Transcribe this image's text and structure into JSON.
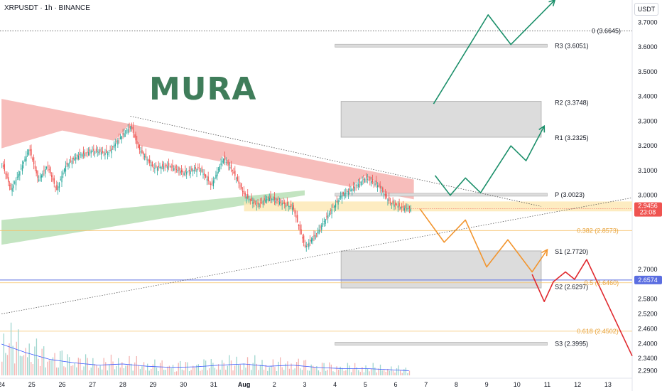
{
  "header": {
    "symbol": "XRPUSDT · 1h · BINANCE",
    "currency": "USDT"
  },
  "watermark": "MURA",
  "colors": {
    "up": "#26a69a",
    "down": "#ef5350",
    "volume_up": "#9fd6cf",
    "volume_down": "#f4b4b2",
    "green_path": "#1b8f6a",
    "orange_path": "#f2952e",
    "red_path": "#e0292e",
    "pivot_zone": "#dcdcdc",
    "fib_line": "#f5c26b",
    "price_zone": "#fde9b6",
    "current_price": "#ef5350",
    "blue_line": "#5b6ee1"
  },
  "chart_data": {
    "type": "candlestick",
    "y_axis": {
      "ylim": [
        2.26,
        3.79
      ],
      "ticks": [
        "3.7000",
        "3.6000",
        "3.5000",
        "3.4000",
        "3.3000",
        "3.2000",
        "3.1000",
        "3.0000",
        "2.7000",
        "2.5800",
        "2.5200",
        "2.4600",
        "2.4000",
        "2.3400",
        "2.2900"
      ]
    },
    "x_axis": {
      "ticks": [
        {
          "t": 0,
          "label": "24"
        },
        {
          "t": 1,
          "label": "25"
        },
        {
          "t": 2,
          "label": "26"
        },
        {
          "t": 3,
          "label": "27"
        },
        {
          "t": 4,
          "label": "28"
        },
        {
          "t": 5,
          "label": "29"
        },
        {
          "t": 6,
          "label": "30"
        },
        {
          "t": 7,
          "label": "31"
        },
        {
          "t": 8,
          "label": "Aug"
        },
        {
          "t": 9,
          "label": "2"
        },
        {
          "t": 10,
          "label": "3"
        },
        {
          "t": 11,
          "label": "4"
        },
        {
          "t": 12,
          "label": "5"
        },
        {
          "t": 13,
          "label": "6"
        },
        {
          "t": 14,
          "label": "7"
        },
        {
          "t": 15,
          "label": "8"
        },
        {
          "t": 16,
          "label": "9"
        },
        {
          "t": 17,
          "label": "10"
        },
        {
          "t": 18,
          "label": "11"
        },
        {
          "t": 19,
          "label": "12"
        },
        {
          "t": 20,
          "label": "13"
        }
      ],
      "xlim": [
        -0.05,
        20.8
      ]
    },
    "price_path": [
      {
        "t": 0.0,
        "p": 3.13
      },
      {
        "t": 0.3,
        "p": 3.02
      },
      {
        "t": 0.6,
        "p": 3.1
      },
      {
        "t": 0.9,
        "p": 3.19
      },
      {
        "t": 1.2,
        "p": 3.06
      },
      {
        "t": 1.5,
        "p": 3.12
      },
      {
        "t": 1.8,
        "p": 3.02
      },
      {
        "t": 2.1,
        "p": 3.12
      },
      {
        "t": 2.5,
        "p": 3.16
      },
      {
        "t": 3.0,
        "p": 3.18
      },
      {
        "t": 3.5,
        "p": 3.17
      },
      {
        "t": 3.8,
        "p": 3.22
      },
      {
        "t": 4.25,
        "p": 3.28
      },
      {
        "t": 4.5,
        "p": 3.19
      },
      {
        "t": 5.0,
        "p": 3.11
      },
      {
        "t": 5.5,
        "p": 3.12
      },
      {
        "t": 6.0,
        "p": 3.09
      },
      {
        "t": 6.5,
        "p": 3.11
      },
      {
        "t": 6.9,
        "p": 3.04
      },
      {
        "t": 7.3,
        "p": 3.15
      },
      {
        "t": 7.6,
        "p": 3.1
      },
      {
        "t": 8.0,
        "p": 3.0
      },
      {
        "t": 8.4,
        "p": 2.96
      },
      {
        "t": 8.8,
        "p": 2.99
      },
      {
        "t": 9.2,
        "p": 2.97
      },
      {
        "t": 9.6,
        "p": 2.95
      },
      {
        "t": 10.0,
        "p": 2.79
      },
      {
        "t": 10.4,
        "p": 2.85
      },
      {
        "t": 10.8,
        "p": 2.93
      },
      {
        "t": 11.2,
        "p": 3.0
      },
      {
        "t": 11.6,
        "p": 3.03
      },
      {
        "t": 12.0,
        "p": 3.07
      },
      {
        "t": 12.4,
        "p": 3.04
      },
      {
        "t": 12.8,
        "p": 2.97
      },
      {
        "t": 13.2,
        "p": 2.95
      },
      {
        "t": 13.5,
        "p": 2.9456
      }
    ],
    "volume": [
      {
        "t": 0.0,
        "v": 55
      },
      {
        "t": 0.8,
        "v": 40
      },
      {
        "t": 1.6,
        "v": 28
      },
      {
        "t": 2.4,
        "v": 22
      },
      {
        "t": 3.2,
        "v": 18
      },
      {
        "t": 4.0,
        "v": 20
      },
      {
        "t": 4.8,
        "v": 16
      },
      {
        "t": 5.6,
        "v": 14
      },
      {
        "t": 6.4,
        "v": 15
      },
      {
        "t": 7.2,
        "v": 18
      },
      {
        "t": 8.0,
        "v": 20
      },
      {
        "t": 8.8,
        "v": 16
      },
      {
        "t": 9.6,
        "v": 18
      },
      {
        "t": 10.4,
        "v": 14
      },
      {
        "t": 11.2,
        "v": 12
      },
      {
        "t": 12.0,
        "v": 12
      },
      {
        "t": 12.8,
        "v": 10
      },
      {
        "t": 13.5,
        "v": 8
      }
    ],
    "pivot_levels": [
      {
        "name": "R3",
        "label": "R3 (3.6051)",
        "value": 3.6051
      },
      {
        "name": "R2",
        "label": "R2 (3.3748)",
        "value": 3.3748
      },
      {
        "name": "R1",
        "label": "R1 (3.2325)",
        "value": 3.2325
      },
      {
        "name": "P",
        "label": "P (3.0023)",
        "value": 3.0023
      },
      {
        "name": "S1",
        "label": "S1 (2.7720)",
        "value": 2.772
      },
      {
        "name": "S2",
        "label": "S2 (2.6297)",
        "value": 2.6297
      },
      {
        "name": "S3",
        "label": "S3 (2.3995)",
        "value": 2.3995
      }
    ],
    "fib_levels": [
      {
        "label": "0 (3.6645)",
        "value": 3.6645
      },
      {
        "label": "0.382 (2.8573)",
        "value": 2.8573
      },
      {
        "label": "0.5 (2.6460)",
        "value": 2.646
      },
      {
        "label": "0.618 (2.4502)",
        "value": 2.4502
      }
    ],
    "current_price": {
      "value": 2.9456,
      "label": "2.9456",
      "countdown": "23:08"
    },
    "horizontal_line": {
      "value": 2.6574,
      "label": "2.6574"
    },
    "projections": {
      "green_upper": [
        {
          "t": 14.25,
          "p": 3.37
        },
        {
          "t": 16.05,
          "p": 3.73
        },
        {
          "t": 16.8,
          "p": 3.61
        },
        {
          "t": 18.25,
          "p": 3.79
        }
      ],
      "green_lower": [
        {
          "t": 14.3,
          "p": 3.08
        },
        {
          "t": 14.8,
          "p": 3.0
        },
        {
          "t": 15.3,
          "p": 3.07
        },
        {
          "t": 15.8,
          "p": 3.01
        },
        {
          "t": 16.8,
          "p": 3.2
        },
        {
          "t": 17.3,
          "p": 3.14
        },
        {
          "t": 17.9,
          "p": 3.28
        }
      ],
      "orange": [
        {
          "t": 13.8,
          "p": 2.945
        },
        {
          "t": 14.6,
          "p": 2.81
        },
        {
          "t": 15.3,
          "p": 2.9
        },
        {
          "t": 16.0,
          "p": 2.71
        },
        {
          "t": 16.7,
          "p": 2.82
        },
        {
          "t": 17.5,
          "p": 2.69
        },
        {
          "t": 18.0,
          "p": 2.78
        }
      ],
      "red": [
        {
          "t": 17.5,
          "p": 2.68
        },
        {
          "t": 17.9,
          "p": 2.57
        },
        {
          "t": 18.2,
          "p": 2.65
        },
        {
          "t": 18.6,
          "p": 2.69
        },
        {
          "t": 18.9,
          "p": 2.66
        },
        {
          "t": 19.3,
          "p": 2.74
        },
        {
          "t": 20.8,
          "p": 2.35
        }
      ]
    }
  }
}
